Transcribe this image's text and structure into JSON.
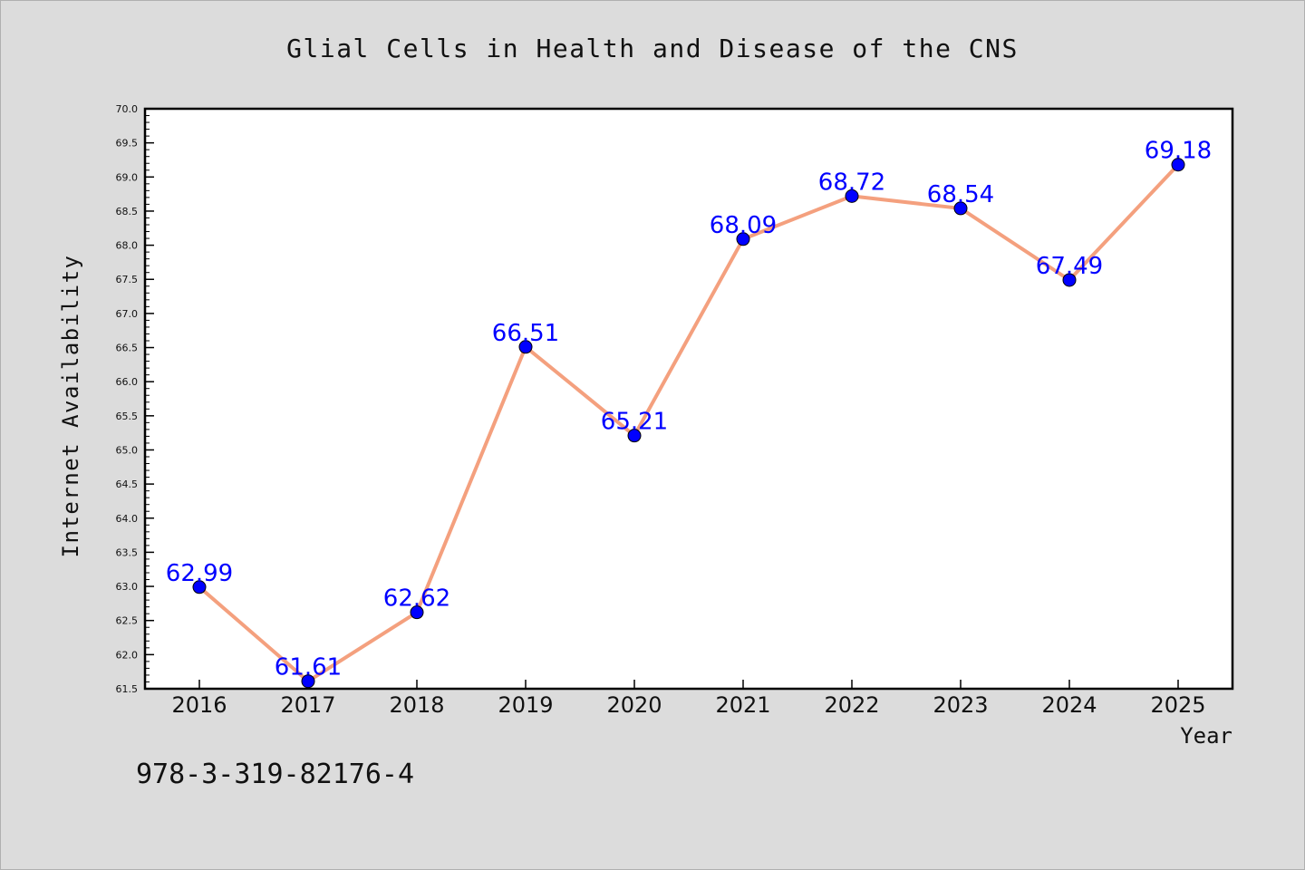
{
  "chart_data": {
    "type": "line",
    "title": "Glial Cells in Health and Disease of the CNS",
    "xlabel": "Year",
    "ylabel": "Internet Availability",
    "caption": "978-3-319-82176-4",
    "categories": [
      "2016",
      "2017",
      "2018",
      "2019",
      "2020",
      "2021",
      "2022",
      "2023",
      "2024",
      "2025"
    ],
    "series": [
      {
        "values": [
          62.99,
          61.61,
          62.62,
          66.51,
          65.21,
          68.09,
          68.72,
          68.54,
          67.49,
          69.18
        ]
      }
    ],
    "value_labels": [
      "62.99",
      "61.61",
      "62.62",
      "66.51",
      "65.21",
      "68.09",
      "68.72",
      "68.54",
      "67.49",
      "69.18"
    ],
    "ylim": [
      61.5,
      70.0
    ],
    "y_ticks": [
      "61.5",
      "62.0",
      "62.5",
      "63.0",
      "63.5",
      "64.0",
      "64.5",
      "65.0",
      "65.5",
      "66.0",
      "66.5",
      "67.0",
      "67.5",
      "68.0",
      "68.5",
      "69.0",
      "69.5",
      "70.0"
    ],
    "grid": false,
    "colors": {
      "line": "#f4a07e",
      "marker": "#0000ff",
      "value_label": "#0000ff",
      "background": "#dcdcdc",
      "plot_background": "#ffffff"
    }
  }
}
